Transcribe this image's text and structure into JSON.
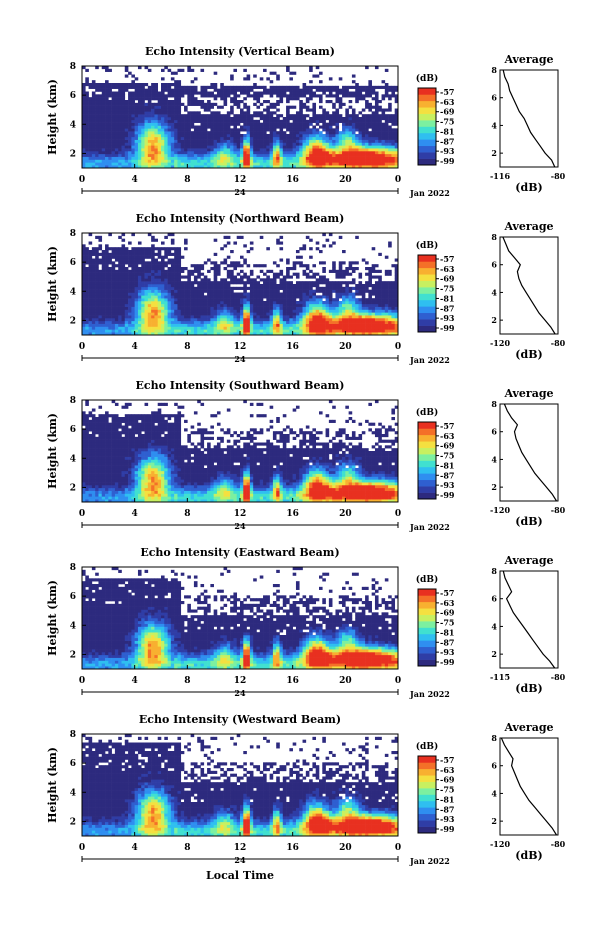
{
  "palette": [
    "#2d2a7e",
    "#2f3da6",
    "#2f5fd0",
    "#2f8ef0",
    "#2fbff0",
    "#40e0d0",
    "#7cf0a0",
    "#c8f060",
    "#f4e040",
    "#f8b030",
    "#f47028",
    "#e83020"
  ],
  "page": {
    "xlabel": "Local Time",
    "xticks": [
      "0",
      "4",
      "8",
      "12",
      "16",
      "20",
      "0"
    ],
    "date_day": "24",
    "date_label": "Jan 2022",
    "unit_label": "(dB)",
    "avg_title": "Average",
    "avg_xlabel": "(dB)",
    "ylabel": "Height (km)",
    "yticks": [
      "2",
      "4",
      "6",
      "8"
    ],
    "colorbar_ticks": [
      "-57",
      "-63",
      "-69",
      "-75",
      "-81",
      "-87",
      "-93",
      "-99"
    ]
  },
  "chart_data": [
    {
      "type": "heatmap",
      "title": "Echo Intensity (Vertical Beam)",
      "xlabel": "",
      "ylabel": "Height (km)",
      "xlim": [
        0,
        24
      ],
      "ylim": [
        1,
        8
      ],
      "colorbar": {
        "label": "(dB)",
        "ticks": [
          -57,
          -63,
          -69,
          -75,
          -81,
          -87,
          -93,
          -99
        ]
      },
      "average": {
        "title": "Average",
        "xlabel": "(dB)",
        "xticks": [
          "-116",
          "-80"
        ],
        "xlim": [
          -116,
          -80
        ],
        "profile": [
          [
            1.0,
            -82
          ],
          [
            1.5,
            -84
          ],
          [
            2.0,
            -88
          ],
          [
            2.5,
            -91
          ],
          [
            3.0,
            -94
          ],
          [
            3.5,
            -97
          ],
          [
            4.0,
            -99
          ],
          [
            4.5,
            -101
          ],
          [
            5.0,
            -104
          ],
          [
            5.5,
            -106
          ],
          [
            6.0,
            -108
          ],
          [
            6.5,
            -110
          ],
          [
            7.0,
            -111
          ],
          [
            7.5,
            -113
          ],
          [
            8.0,
            -114
          ]
        ]
      }
    },
    {
      "type": "heatmap",
      "title": "Echo Intensity (Northward Beam)",
      "xlabel": "",
      "ylabel": "Height (km)",
      "xlim": [
        0,
        24
      ],
      "ylim": [
        1,
        8
      ],
      "colorbar": {
        "label": "(dB)",
        "ticks": [
          -57,
          -63,
          -69,
          -75,
          -81,
          -87,
          -93,
          -99
        ]
      },
      "average": {
        "title": "Average",
        "xlabel": "(dB)",
        "xticks": [
          "-120",
          "-80"
        ],
        "xlim": [
          -120,
          -80
        ],
        "profile": [
          [
            1.0,
            -82
          ],
          [
            1.5,
            -85
          ],
          [
            2.0,
            -89
          ],
          [
            2.5,
            -93
          ],
          [
            3.0,
            -96
          ],
          [
            3.5,
            -99
          ],
          [
            4.0,
            -102
          ],
          [
            4.5,
            -105
          ],
          [
            5.0,
            -107
          ],
          [
            5.5,
            -108
          ],
          [
            6.0,
            -106
          ],
          [
            6.5,
            -110
          ],
          [
            7.0,
            -114
          ],
          [
            7.5,
            -116
          ],
          [
            8.0,
            -118
          ]
        ]
      }
    },
    {
      "type": "heatmap",
      "title": "Echo Intensity (Southward Beam)",
      "xlabel": "",
      "ylabel": "Height (km)",
      "xlim": [
        0,
        24
      ],
      "ylim": [
        1,
        8
      ],
      "colorbar": {
        "label": "(dB)",
        "ticks": [
          -57,
          -63,
          -69,
          -75,
          -81,
          -87,
          -93,
          -99
        ]
      },
      "average": {
        "title": "Average",
        "xlabel": "(dB)",
        "xticks": [
          "-120",
          "-80"
        ],
        "xlim": [
          -120,
          -80
        ],
        "profile": [
          [
            1.0,
            -81
          ],
          [
            1.5,
            -84
          ],
          [
            2.0,
            -88
          ],
          [
            2.5,
            -92
          ],
          [
            3.0,
            -96
          ],
          [
            3.5,
            -99
          ],
          [
            4.0,
            -102
          ],
          [
            4.5,
            -105
          ],
          [
            5.0,
            -107
          ],
          [
            5.5,
            -109
          ],
          [
            6.0,
            -110
          ],
          [
            6.5,
            -108
          ],
          [
            7.0,
            -112
          ],
          [
            7.5,
            -115
          ],
          [
            8.0,
            -117
          ]
        ]
      }
    },
    {
      "type": "heatmap",
      "title": "Echo Intensity (Eastward Beam)",
      "xlabel": "",
      "ylabel": "Height (km)",
      "xlim": [
        0,
        24
      ],
      "ylim": [
        1,
        8
      ],
      "colorbar": {
        "label": "(dB)",
        "ticks": [
          -57,
          -63,
          -69,
          -75,
          -81,
          -87,
          -93,
          -99
        ]
      },
      "average": {
        "title": "Average",
        "xlabel": "(dB)",
        "xticks": [
          "-115",
          "-80"
        ],
        "xlim": [
          -115,
          -80
        ],
        "profile": [
          [
            1.0,
            -82
          ],
          [
            1.5,
            -85
          ],
          [
            2.0,
            -89
          ],
          [
            2.5,
            -92
          ],
          [
            3.0,
            -95
          ],
          [
            3.5,
            -98
          ],
          [
            4.0,
            -101
          ],
          [
            4.5,
            -104
          ],
          [
            5.0,
            -107
          ],
          [
            5.5,
            -109
          ],
          [
            6.0,
            -111
          ],
          [
            6.5,
            -108
          ],
          [
            7.0,
            -110
          ],
          [
            7.5,
            -112
          ],
          [
            8.0,
            -113
          ]
        ]
      }
    },
    {
      "type": "heatmap",
      "title": "Echo Intensity (Westward Beam)",
      "xlabel": "Local Time",
      "ylabel": "Height (km)",
      "xlim": [
        0,
        24
      ],
      "ylim": [
        1,
        8
      ],
      "colorbar": {
        "label": "(dB)",
        "ticks": [
          -57,
          -63,
          -69,
          -75,
          -81,
          -87,
          -93,
          -99
        ]
      },
      "average": {
        "title": "Average",
        "xlabel": "(dB)",
        "xticks": [
          "-120",
          "-80"
        ],
        "xlim": [
          -120,
          -80
        ],
        "profile": [
          [
            1.0,
            -81
          ],
          [
            1.5,
            -84
          ],
          [
            2.0,
            -88
          ],
          [
            2.5,
            -92
          ],
          [
            3.0,
            -96
          ],
          [
            3.5,
            -100
          ],
          [
            4.0,
            -103
          ],
          [
            4.5,
            -106
          ],
          [
            5.0,
            -108
          ],
          [
            5.5,
            -110
          ],
          [
            6.0,
            -112
          ],
          [
            6.5,
            -111
          ],
          [
            7.0,
            -114
          ],
          [
            7.5,
            -117
          ],
          [
            8.0,
            -119
          ]
        ]
      }
    }
  ]
}
